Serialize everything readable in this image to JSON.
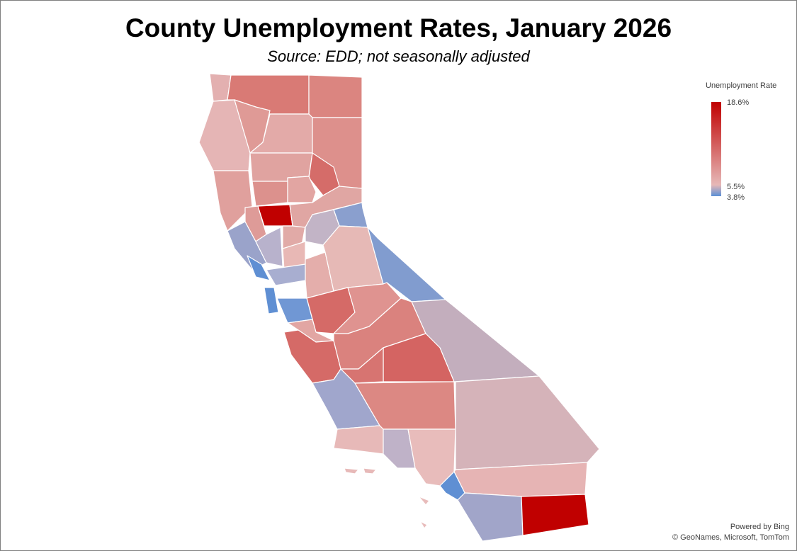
{
  "title": "County Unemployment Rates, January 2026",
  "subtitle": "Source:  EDD; not seasonally adjusted",
  "legend": {
    "title": "Unemployment Rate",
    "max_label": "18.6%",
    "mid_label": "5.5%",
    "min_label": "3.8%",
    "max_color": "#c00000",
    "mid_color": "#e6b8b7",
    "min_color": "#5b8fd6"
  },
  "credits": {
    "line1": "Powered by Bing",
    "line2": "© GeoNames, Microsoft, TomTom"
  },
  "map": {
    "fills": [
      "#e3b0b0",
      "#d97a75",
      "#db8580",
      "#e5b5b5",
      "#df9a96",
      "#e3aaa8",
      "#dd908c",
      "#e0a3a0",
      "#d56c69",
      "#e0a09d",
      "#dc918d",
      "#e2a5a2",
      "#c00000",
      "#de9b98",
      "#9aa3ca",
      "#b8b2cc",
      "#e1aaa7",
      "#e8b8b5",
      "#e0a6a3",
      "#c2b4c6",
      "#5f8fd3",
      "#5f8fd3",
      "#a8aed0",
      "#e4aeab",
      "#7097d4",
      "#e6b9b6",
      "#819ccf",
      "#d56a67",
      "#df9390",
      "#e2a6a3",
      "#d56a67",
      "#da827e",
      "#c3aebd",
      "#d46462",
      "#d77471",
      "#a0a6cc",
      "#dc8883",
      "#e7b9b8",
      "#bfb2c8",
      "#e8bcbb",
      "#d5b3b9",
      "#e6b4b4",
      "#5f8fd3",
      "#a1a5c9",
      "#c00000",
      "#8a9fce"
    ]
  }
}
